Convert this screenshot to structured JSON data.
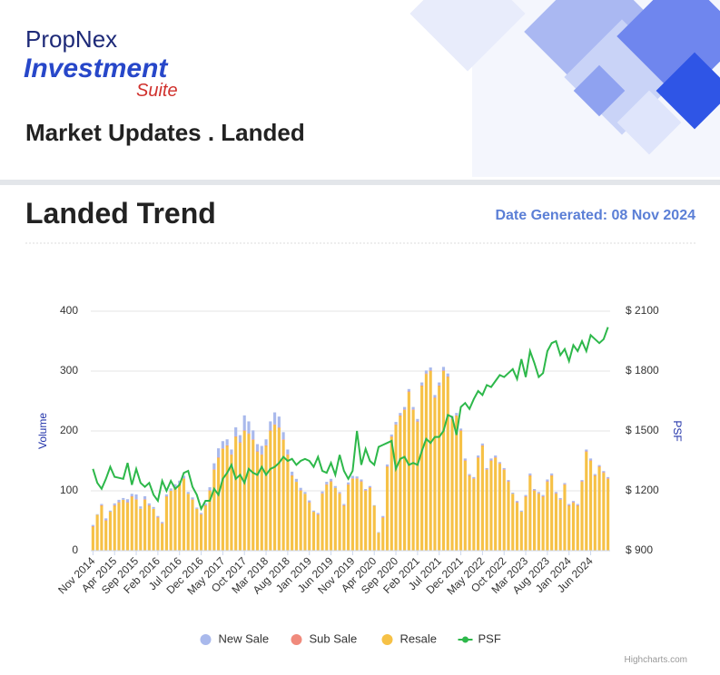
{
  "header": {
    "brand": "PropNex",
    "product": "Investment",
    "suite": "Suite",
    "title": "Market Updates . Landed"
  },
  "section": {
    "title": "Landed Trend",
    "date": "Date Generated: 08 Nov 2024"
  },
  "credit": "Highcharts.com",
  "chart_data": {
    "type": "bar",
    "stacked": true,
    "y_label": "Volume",
    "y2_label": "PSF",
    "ylim": [
      0,
      400
    ],
    "yticks": [
      0,
      100,
      200,
      300,
      400
    ],
    "y2lim": [
      900,
      2100
    ],
    "y2ticks": [
      {
        "value": 900,
        "label": "$ 900"
      },
      {
        "value": 1200,
        "label": "$ 1200"
      },
      {
        "value": 1500,
        "label": "$ 1500"
      },
      {
        "value": 1800,
        "label": "$ 1800"
      },
      {
        "value": 2100,
        "label": "$ 2100"
      }
    ],
    "grid": true,
    "categories": [
      "Nov 2014",
      null,
      null,
      null,
      null,
      "Apr 2015",
      null,
      null,
      null,
      null,
      "Sep 2015",
      null,
      null,
      null,
      null,
      "Feb 2016",
      null,
      null,
      null,
      null,
      "Jul 2016",
      null,
      null,
      null,
      null,
      "Dec 2016",
      null,
      null,
      null,
      null,
      "May 2017",
      null,
      null,
      null,
      null,
      "Oct 2017",
      null,
      null,
      null,
      null,
      "Mar 2018",
      null,
      null,
      null,
      null,
      "Aug 2018",
      null,
      null,
      null,
      null,
      "Jan 2019",
      null,
      null,
      null,
      null,
      "Jun 2019",
      null,
      null,
      null,
      null,
      "Nov 2019",
      null,
      null,
      null,
      null,
      "Apr 2020",
      null,
      null,
      null,
      null,
      "Sep 2020",
      null,
      null,
      null,
      null,
      "Feb 2021",
      null,
      null,
      null,
      null,
      "Jul 2021",
      null,
      null,
      null,
      null,
      "Dec 2021",
      null,
      null,
      null,
      null,
      "May 2022",
      null,
      null,
      null,
      null,
      "Oct 2022",
      null,
      null,
      null,
      null,
      "Mar 2023",
      null,
      null,
      null,
      null,
      "Aug 2023",
      null,
      null,
      null,
      null,
      "Jan 2024",
      null,
      null,
      null,
      null,
      "Jun 2024",
      null,
      null,
      null,
      null
    ],
    "series": [
      {
        "name": "New Sale",
        "color": "#a9b9ec",
        "values": [
          2,
          1,
          2,
          3,
          2,
          3,
          4,
          3,
          5,
          4,
          8,
          4,
          5,
          3,
          3,
          2,
          2,
          3,
          4,
          5,
          6,
          4,
          3,
          3,
          2,
          2,
          3,
          5,
          10,
          15,
          12,
          10,
          8,
          15,
          12,
          25,
          20,
          15,
          12,
          14,
          10,
          15,
          20,
          18,
          12,
          8,
          6,
          5,
          4,
          3,
          3,
          2,
          2,
          3,
          4,
          4,
          3,
          2,
          2,
          3,
          4,
          3,
          3,
          2,
          2,
          1,
          1,
          2,
          3,
          3,
          4,
          4,
          4,
          4,
          4,
          4,
          5,
          5,
          5,
          4,
          5,
          6,
          5,
          4,
          4,
          3,
          3,
          2,
          2,
          3,
          3,
          2,
          3,
          3,
          2,
          2,
          2,
          2,
          2,
          2,
          2,
          3,
          2,
          2,
          2,
          3,
          3,
          2,
          2,
          2,
          2,
          2,
          2,
          2,
          3,
          3,
          2,
          2,
          2,
          2
        ]
      },
      {
        "name": "Sub Sale",
        "color": "#f08a7c",
        "values": [
          1,
          0,
          1,
          1,
          0,
          1,
          1,
          0,
          1,
          1,
          1,
          0,
          1,
          1,
          0,
          1,
          1,
          1,
          0,
          1,
          1,
          1,
          0,
          1,
          0,
          1,
          1,
          1,
          1,
          1,
          1,
          1,
          1,
          1,
          1,
          1,
          1,
          1,
          1,
          1,
          1,
          1,
          1,
          1,
          1,
          1,
          1,
          0,
          1,
          0,
          1,
          0,
          1,
          1,
          1,
          1,
          0,
          1,
          1,
          1,
          1,
          1,
          1,
          1,
          1,
          0,
          0,
          1,
          1,
          1,
          1,
          1,
          1,
          1,
          1,
          1,
          1,
          1,
          1,
          1,
          1,
          1,
          1,
          1,
          1,
          1,
          1,
          1,
          1,
          1,
          1,
          1,
          1,
          1,
          1,
          1,
          1,
          0,
          1,
          0,
          1,
          1,
          1,
          1,
          1,
          1,
          1,
          1,
          1,
          1,
          1,
          1,
          1,
          1,
          1,
          1,
          1,
          1,
          1,
          1
        ]
      },
      {
        "name": "Resale",
        "color": "#f6c146",
        "values": [
          40,
          60,
          75,
          50,
          65,
          75,
          80,
          85,
          80,
          90,
          85,
          70,
          85,
          75,
          70,
          55,
          45,
          90,
          100,
          105,
          110,
          120,
          95,
          85,
          70,
          60,
          75,
          100,
          135,
          155,
          170,
          175,
          160,
          190,
          180,
          200,
          195,
          185,
          165,
          160,
          175,
          200,
          210,
          205,
          185,
          160,
          125,
          115,
          100,
          95,
          80,
          65,
          60,
          95,
          110,
          115,
          105,
          95,
          75,
          110,
          120,
          120,
          115,
          100,
          105,
          75,
          30,
          55,
          140,
          190,
          210,
          225,
          235,
          265,
          235,
          215,
          275,
          295,
          300,
          255,
          275,
          300,
          290,
          220,
          225,
          200,
          150,
          125,
          120,
          155,
          175,
          135,
          150,
          155,
          145,
          135,
          115,
          95,
          80,
          65,
          90,
          125,
          100,
          95,
          90,
          115,
          125,
          95,
          85,
          110,
          75,
          80,
          75,
          115,
          165,
          150,
          125,
          140,
          130,
          120
        ]
      },
      {
        "name": "PSF",
        "color": "#2db84a",
        "type": "line",
        "axis": "y2",
        "values": [
          1310,
          1240,
          1210,
          1260,
          1320,
          1270,
          1265,
          1260,
          1340,
          1230,
          1310,
          1240,
          1220,
          1240,
          1180,
          1150,
          1250,
          1200,
          1250,
          1210,
          1230,
          1290,
          1300,
          1220,
          1180,
          1110,
          1150,
          1150,
          1210,
          1180,
          1260,
          1290,
          1330,
          1260,
          1280,
          1240,
          1310,
          1290,
          1280,
          1320,
          1280,
          1310,
          1320,
          1340,
          1370,
          1350,
          1360,
          1330,
          1350,
          1360,
          1350,
          1320,
          1370,
          1300,
          1290,
          1340,
          1280,
          1380,
          1300,
          1260,
          1300,
          1500,
          1330,
          1410,
          1350,
          1330,
          1420,
          1430,
          1440,
          1450,
          1310,
          1360,
          1370,
          1330,
          1340,
          1330,
          1400,
          1460,
          1440,
          1470,
          1470,
          1500,
          1580,
          1570,
          1480,
          1620,
          1640,
          1610,
          1660,
          1700,
          1680,
          1730,
          1720,
          1750,
          1780,
          1770,
          1790,
          1810,
          1760,
          1860,
          1770,
          1900,
          1840,
          1770,
          1790,
          1900,
          1940,
          1950,
          1880,
          1910,
          1850,
          1930,
          1900,
          1950,
          1900,
          1980,
          1960,
          1940,
          1960,
          2020
        ]
      }
    ]
  }
}
